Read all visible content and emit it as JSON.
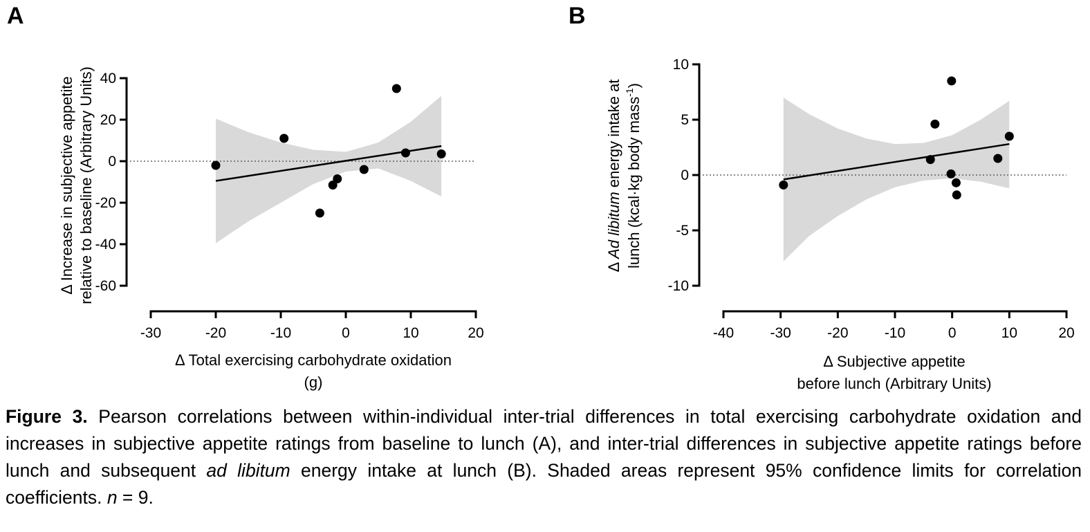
{
  "chart_data": [
    {
      "type": "scatter",
      "panel_label": "A",
      "xlabel_lines": [
        "Δ Total exercising carbohydrate oxidation",
        "(g)"
      ],
      "ylabel_lines": [
        "Δ Increase in subjective appetite",
        "relative to baseline (Arbitrary Units)"
      ],
      "xlim": [
        -30,
        20
      ],
      "ylim": [
        -60,
        40
      ],
      "xticks": [
        -30,
        -20,
        -10,
        0,
        10,
        20
      ],
      "yticks": [
        -60,
        -40,
        -20,
        0,
        20,
        40
      ],
      "points": [
        {
          "x": -20,
          "y": -2
        },
        {
          "x": -9.5,
          "y": 11
        },
        {
          "x": -4,
          "y": -25
        },
        {
          "x": -2,
          "y": -11.5
        },
        {
          "x": -1.3,
          "y": -8.5
        },
        {
          "x": 2.8,
          "y": -4
        },
        {
          "x": 7.8,
          "y": 35
        },
        {
          "x": 9.2,
          "y": 4
        },
        {
          "x": 14.7,
          "y": 3.5
        }
      ],
      "regression_line": {
        "x": [
          -20,
          14.7
        ],
        "y": [
          -9.5,
          7.3
        ]
      },
      "confidence_band": {
        "x": [
          -20,
          -15,
          -10,
          -5,
          0,
          5,
          10,
          14.7
        ],
        "upper": [
          20.5,
          14,
          9,
          5.5,
          4.5,
          9,
          19,
          31.5
        ],
        "lower": [
          -39.5,
          -29,
          -20,
          -11,
          -5,
          -3.5,
          -9.5,
          -17
        ]
      },
      "reference_line_y": 0
    },
    {
      "type": "scatter",
      "panel_label": "B",
      "xlabel_lines": [
        "Δ Subjective appetite",
        "before lunch (Arbitrary Units)"
      ],
      "ylabel_line1": {
        "prefix": "Δ ",
        "italic": "Ad libitum",
        "suffix": " energy intake at"
      },
      "ylabel_line2": {
        "text": "lunch (kcal·kg body mass",
        "superscript": "-1",
        "close": ")"
      },
      "xlim": [
        -40,
        20
      ],
      "ylim": [
        -10,
        10
      ],
      "xticks": [
        -40,
        -30,
        -20,
        -10,
        0,
        10,
        20
      ],
      "yticks": [
        -10,
        -5,
        0,
        5,
        10
      ],
      "points": [
        {
          "x": -29.5,
          "y": -0.9
        },
        {
          "x": -3.8,
          "y": 1.4
        },
        {
          "x": -3,
          "y": 4.6
        },
        {
          "x": -0.2,
          "y": 0.1
        },
        {
          "x": -0.1,
          "y": 8.5
        },
        {
          "x": 0.7,
          "y": -0.7
        },
        {
          "x": 0.8,
          "y": -1.8
        },
        {
          "x": 8,
          "y": 1.5
        },
        {
          "x": 10,
          "y": 3.5
        }
      ],
      "regression_line": {
        "x": [
          -29.5,
          10
        ],
        "y": [
          -0.4,
          2.8
        ]
      },
      "confidence_band": {
        "x": [
          -29.5,
          -25,
          -20,
          -15,
          -10,
          -5,
          0,
          5,
          10
        ],
        "upper": [
          7,
          5.5,
          4.2,
          3.3,
          2.8,
          2.9,
          3.6,
          5,
          6.7
        ],
        "lower": [
          -7.8,
          -5.5,
          -3.7,
          -2.2,
          -1.1,
          -0.5,
          -0.3,
          -0.6,
          -1.2
        ]
      },
      "reference_line_y": 0
    }
  ],
  "caption": {
    "label": "Figure 3.",
    "text_1": " Pearson correlations between within-individual inter-trial differences in total exercising carbohydrate oxidation and increases in subjective appetite ratings from baseline to lunch (A), and inter-trial differences in subjective appetite ratings before lunch and subsequent ",
    "italic_1": "ad libitum",
    "text_2": " energy intake at lunch (B). Shaded areas represent 95% confidence limits for correlation coefficients. ",
    "italic_2": "n",
    "text_3": " = 9."
  },
  "colors": {
    "band": "#d9d9d9",
    "points": "#000000",
    "axis": "#000000"
  }
}
